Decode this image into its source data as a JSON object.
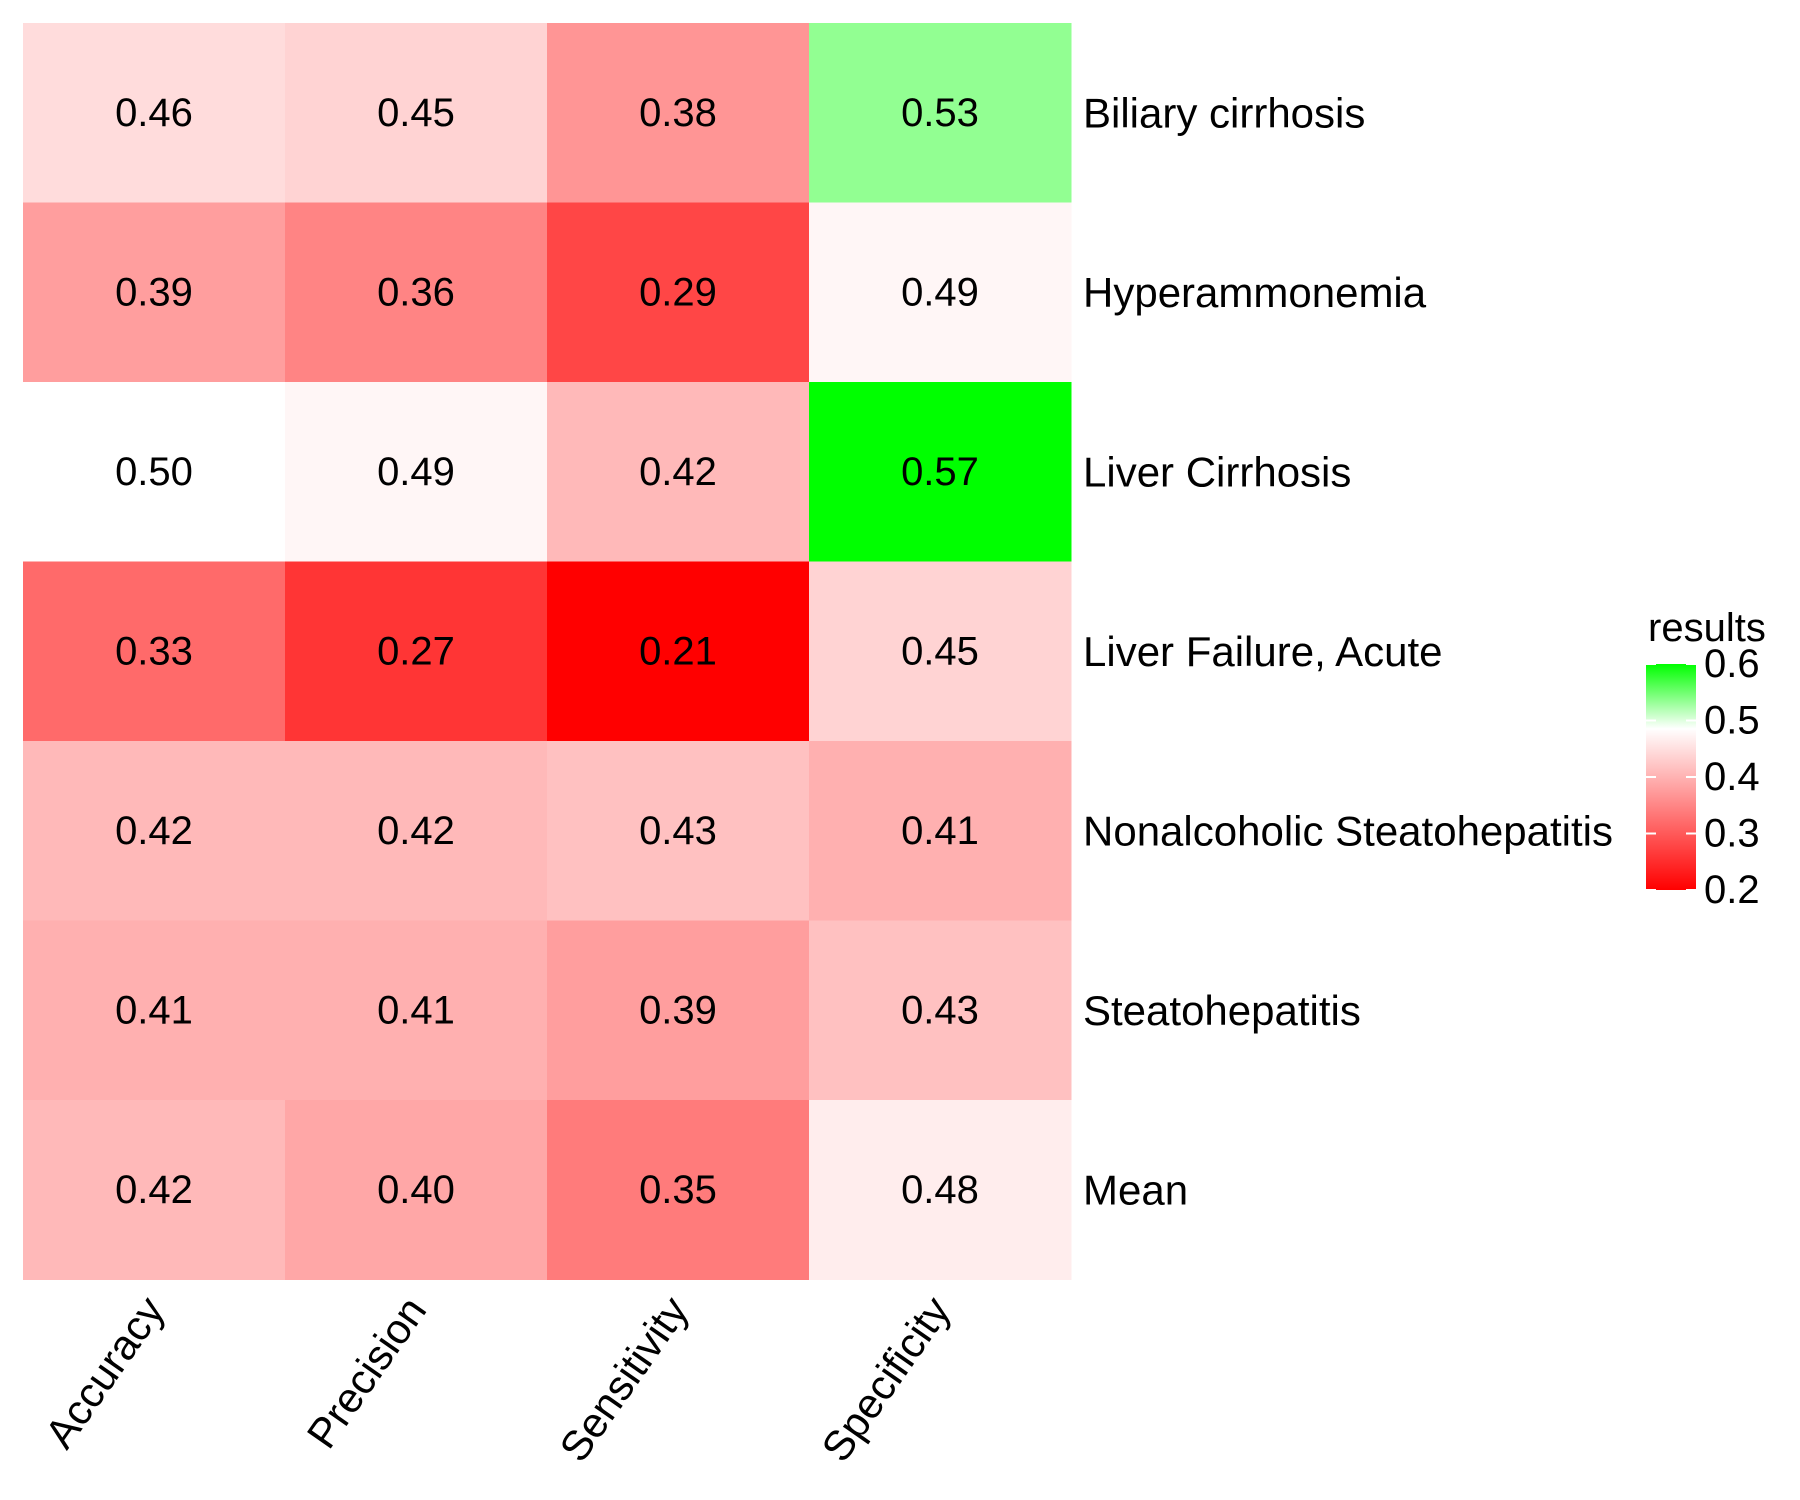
{
  "chart_data": {
    "type": "heatmap",
    "title": "",
    "xlabel": "",
    "ylabel": "",
    "columns": [
      "Accuracy",
      "Precision",
      "Sensitivity",
      "Specificity"
    ],
    "rows": [
      "Biliary cirrhosis",
      "Hyperammonemia",
      "Liver Cirrhosis",
      "Liver Failure, Acute",
      "Nonalcoholic Steatohepatitis",
      "Steatohepatitis",
      "Mean"
    ],
    "values": [
      [
        0.46,
        0.45,
        0.38,
        0.53
      ],
      [
        0.39,
        0.36,
        0.29,
        0.49
      ],
      [
        0.5,
        0.49,
        0.42,
        0.57
      ],
      [
        0.33,
        0.27,
        0.21,
        0.45
      ],
      [
        0.42,
        0.42,
        0.43,
        0.41
      ],
      [
        0.41,
        0.41,
        0.39,
        0.43
      ],
      [
        0.42,
        0.4,
        0.35,
        0.48
      ]
    ],
    "value_labels": [
      [
        "0.46",
        "0.45",
        "0.38",
        "0.53"
      ],
      [
        "0.39",
        "0.36",
        "0.29",
        "0.49"
      ],
      [
        "0.50",
        "0.49",
        "0.42",
        "0.57"
      ],
      [
        "0.33",
        "0.27",
        "0.21",
        "0.45"
      ],
      [
        "0.42",
        "0.42",
        "0.43",
        "0.41"
      ],
      [
        "0.41",
        "0.41",
        "0.39",
        "0.43"
      ],
      [
        "0.42",
        "0.40",
        "0.35",
        "0.48"
      ]
    ],
    "color_scale": {
      "low": "#ff0000",
      "mid": "#ffffff",
      "high": "#00ff00",
      "min": 0.21,
      "midpoint": 0.5,
      "max": 0.57
    },
    "legend": {
      "title": "results",
      "placement": "right",
      "ticks": [
        0.6,
        0.5,
        0.4,
        0.3,
        0.2
      ],
      "tick_labels": [
        "0.6",
        "0.5",
        "0.4",
        "0.3",
        "0.2"
      ]
    }
  }
}
